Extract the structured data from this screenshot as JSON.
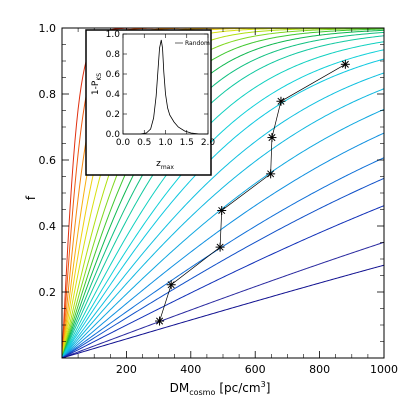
{
  "chart_data": [
    {
      "type": "line",
      "xlabel": "DM",
      "xlabel_sub": "cosmo",
      "xlabel_units": "[pc/cm",
      "xlabel_units_sup": "3",
      "xlabel_units_end": "]",
      "ylabel": "f",
      "xlim": [
        0,
        1000
      ],
      "ylim": [
        0,
        1.0
      ],
      "xticks": [
        "200",
        "400",
        "600",
        "800",
        "1000"
      ],
      "yticks": [
        "0.2",
        "0.4",
        "0.6",
        "0.8",
        "1.0"
      ],
      "curve_family": {
        "count": 24,
        "colormap": "rainbow (red/orange at steep curves to blue at shallow curves)",
        "colors": [
          "#e03010",
          "#ef5a10",
          "#f68a10",
          "#f8b010",
          "#efd010",
          "#d8e010",
          "#b0e010",
          "#80d820",
          "#40c830",
          "#10b850",
          "#10c080",
          "#10c8a0",
          "#10d0c0",
          "#10d0d8",
          "#10c8e0",
          "#10c0e0",
          "#10b8e0",
          "#10a8e0",
          "#1090e0",
          "#1070d8",
          "#1050c8",
          "#1030b8",
          "#2a2aa0",
          "#101090"
        ],
        "half_points": [
          28,
          38,
          52,
          68,
          85,
          105,
          128,
          150,
          172,
          195,
          220,
          248,
          285,
          325,
          365,
          420,
          480,
          560,
          660,
          780,
          900,
          1100,
          1500,
          1900
        ]
      },
      "series": [
        {
          "x": [
            303,
            339,
            491,
            496,
            648,
            652,
            680,
            880
          ],
          "y": [
            0.112,
            0.222,
            0.336,
            0.447,
            0.558,
            0.668,
            0.778,
            0.89
          ],
          "color": "#000000",
          "marker": "asterisk"
        }
      ]
    },
    {
      "type": "line",
      "xlabel": "z",
      "xlabel_sub": "max",
      "ylabel": "1-P",
      "ylabel_sub": "KS",
      "legend": [
        "Random"
      ],
      "legend_position": "top-right",
      "xlim": [
        0.0,
        2.0
      ],
      "ylim": [
        0.0,
        1.0
      ],
      "xticks": [
        "0.0",
        "0.5",
        "1.0",
        "1.5",
        "2.0"
      ],
      "yticks": [
        "0.0",
        "0.2",
        "0.4",
        "0.6",
        "0.8",
        "1.0"
      ],
      "series": [
        {
          "name": "Random",
          "color": "#000000",
          "x": [
            0.0,
            0.4,
            0.55,
            0.65,
            0.72,
            0.78,
            0.82,
            0.86,
            0.9,
            0.93,
            0.96,
            1.0,
            1.05,
            1.1,
            1.2,
            1.3,
            1.45,
            1.6,
            1.8,
            2.0
          ],
          "y": [
            0.0,
            0.0,
            0.01,
            0.05,
            0.16,
            0.38,
            0.62,
            0.86,
            0.94,
            0.86,
            0.62,
            0.4,
            0.26,
            0.19,
            0.12,
            0.07,
            0.03,
            0.01,
            0.0,
            0.0
          ]
        }
      ]
    }
  ]
}
